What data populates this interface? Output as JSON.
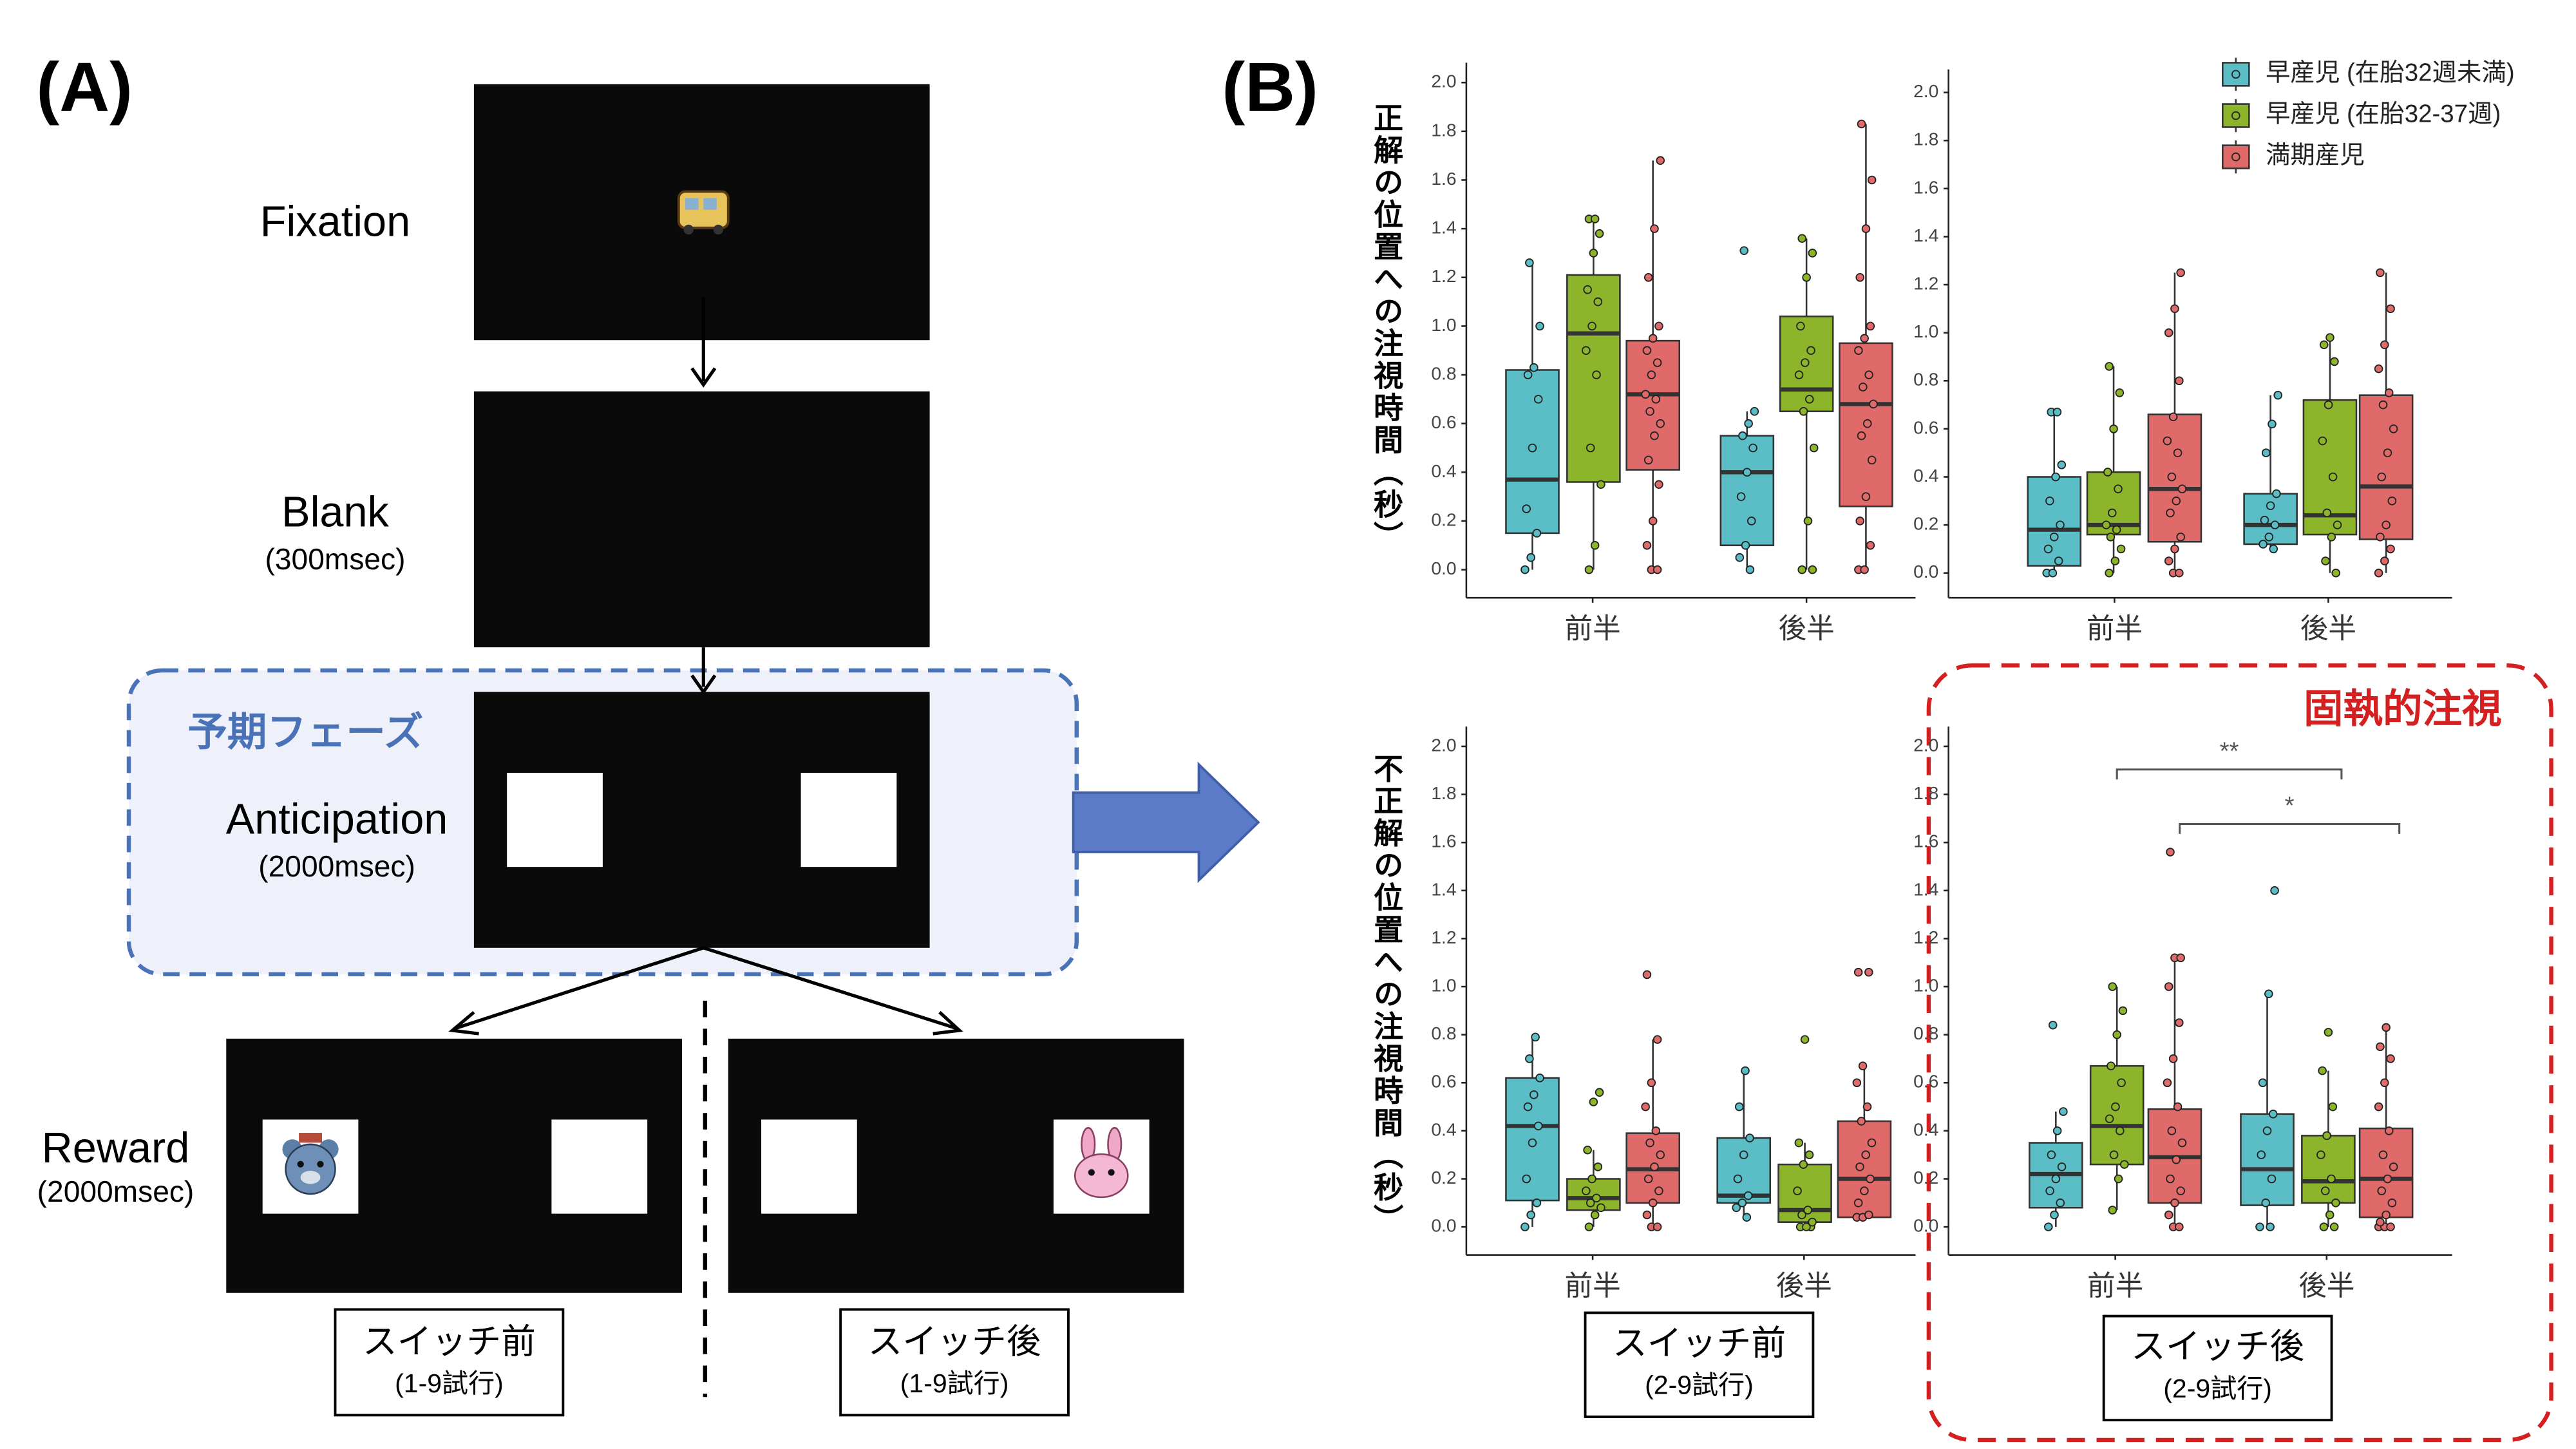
{
  "diagram": {
    "label": "(A)",
    "phase": "予期フェーズ",
    "stages": [
      {
        "label": "Fixation"
      },
      {
        "label": "Blank",
        "duration": "(300msec)"
      },
      {
        "label": "Anticipation",
        "duration": "(2000msec)"
      },
      {
        "label": "Reward",
        "duration": "(2000msec)"
      }
    ],
    "conditions": [
      {
        "label": "スイッチ前",
        "trials": "(1-9試行)"
      },
      {
        "label": "スイッチ後",
        "trials": "(1-9試行)"
      }
    ]
  },
  "panel_b": {
    "label": "(B)",
    "highlight": "固執的注視",
    "conditions": [
      {
        "label": "スイッチ前",
        "trials": "(2-9試行)"
      },
      {
        "label": "スイッチ後",
        "trials": "(2-9試行)"
      }
    ]
  },
  "chart_data": [
    {
      "type": "box",
      "ylabel": "正解の位置への注視時間（秒）",
      "categories": [
        "前半",
        "後半"
      ],
      "ylim": [
        0,
        2
      ],
      "yticks": [
        {
          "value": 0,
          "label": "0.0"
        },
        0.2,
        0.4,
        0.6,
        0.8,
        {
          "value": 1,
          "label": "1.0"
        },
        1.2,
        1.4,
        1.6,
        1.8,
        {
          "value": 2,
          "label": "2.0"
        }
      ],
      "series": [
        {
          "color": "#5bbdc6",
          "whisker_low": [
            0,
            0
          ],
          "q1": [
            0.15,
            0.1
          ],
          "median": [
            0.37,
            0.4
          ],
          "q3": [
            0.82,
            0.55
          ],
          "whisker_high": [
            1.26,
            0.65
          ],
          "points": [
            [
              0,
              0.05,
              0.15,
              0.25,
              0.5,
              0.7,
              0.8,
              0.83,
              1.0,
              1.26
            ],
            [
              0,
              0.05,
              0.1,
              0.2,
              0.3,
              0.4,
              0.5,
              0.55,
              0.6,
              0.65,
              1.31
            ]
          ]
        },
        {
          "color": "#8db52b",
          "whisker_low": [
            0,
            0
          ],
          "q1": [
            0.36,
            0.65
          ],
          "median": [
            0.97,
            0.74
          ],
          "q3": [
            1.21,
            1.04
          ],
          "whisker_high": [
            1.44,
            1.36
          ],
          "points": [
            [
              0,
              0.1,
              0.35,
              0.5,
              0.8,
              0.9,
              1.0,
              1.1,
              1.15,
              1.3,
              1.38,
              1.44,
              1.44
            ],
            [
              0,
              0,
              0.2,
              0.5,
              0.65,
              0.7,
              0.8,
              0.85,
              0.9,
              1.0,
              1.2,
              1.3,
              1.36
            ]
          ]
        },
        {
          "color": "#e06a6a",
          "whisker_low": [
            0,
            0
          ],
          "q1": [
            0.41,
            0.26
          ],
          "median": [
            0.72,
            0.68
          ],
          "q3": [
            0.94,
            0.93
          ],
          "whisker_high": [
            1.68,
            1.83
          ],
          "points": [
            [
              0,
              0,
              0.1,
              0.2,
              0.35,
              0.45,
              0.55,
              0.6,
              0.65,
              0.7,
              0.72,
              0.8,
              0.85,
              0.9,
              0.95,
              1.0,
              1.2,
              1.4,
              1.68
            ],
            [
              0,
              0,
              0.1,
              0.2,
              0.3,
              0.45,
              0.55,
              0.6,
              0.68,
              0.75,
              0.8,
              0.9,
              0.95,
              1.0,
              1.2,
              1.4,
              1.6,
              1.83
            ]
          ]
        }
      ]
    },
    {
      "type": "box",
      "categories": [
        "前半",
        "後半"
      ],
      "ylim": [
        0,
        2
      ],
      "yticks": [
        {
          "value": 0,
          "label": "0.0"
        },
        0.2,
        0.4,
        0.6,
        0.8,
        {
          "value": 1,
          "label": "1.0"
        },
        1.2,
        1.4,
        1.6,
        1.8,
        {
          "value": 2,
          "label": "2.0"
        }
      ],
      "legend": "top-right",
      "series": [
        {
          "name": "早産児 (在胎32週未満)",
          "color": "#5bbdc6",
          "whisker_low": [
            0,
            0.1
          ],
          "q1": [
            0.03,
            0.12
          ],
          "median": [
            0.18,
            0.2
          ],
          "q3": [
            0.4,
            0.33
          ],
          "whisker_high": [
            0.67,
            0.74
          ],
          "points": [
            [
              0,
              0,
              0.05,
              0.1,
              0.15,
              0.2,
              0.3,
              0.4,
              0.45,
              0.67,
              0.67
            ],
            [
              0.1,
              0.12,
              0.15,
              0.2,
              0.22,
              0.28,
              0.33,
              0.5,
              0.62,
              0.74
            ]
          ]
        },
        {
          "name": "早産児 (在胎32-37週)",
          "color": "#8db52b",
          "whisker_low": [
            0,
            0
          ],
          "q1": [
            0.16,
            0.16
          ],
          "median": [
            0.2,
            0.24
          ],
          "q3": [
            0.42,
            0.72
          ],
          "whisker_high": [
            0.86,
            0.98
          ],
          "points": [
            [
              0,
              0.05,
              0.1,
              0.15,
              0.18,
              0.2,
              0.25,
              0.35,
              0.42,
              0.6,
              0.75,
              0.86
            ],
            [
              0,
              0.05,
              0.15,
              0.2,
              0.25,
              0.4,
              0.55,
              0.7,
              0.88,
              0.95,
              0.98
            ]
          ]
        },
        {
          "name": "満期産児",
          "color": "#e06a6a",
          "whisker_low": [
            0,
            0
          ],
          "q1": [
            0.13,
            0.14
          ],
          "median": [
            0.35,
            0.36
          ],
          "q3": [
            0.66,
            0.74
          ],
          "whisker_high": [
            1.25,
            1.25
          ],
          "points": [
            [
              0,
              0,
              0.05,
              0.1,
              0.15,
              0.25,
              0.3,
              0.35,
              0.4,
              0.5,
              0.55,
              0.65,
              0.8,
              1.0,
              1.1,
              1.25
            ],
            [
              0,
              0.05,
              0.1,
              0.15,
              0.2,
              0.3,
              0.4,
              0.5,
              0.6,
              0.7,
              0.75,
              0.85,
              0.95,
              1.1,
              1.25
            ]
          ]
        }
      ]
    },
    {
      "type": "box",
      "ylabel": "不正解の位置への注視時間（秒）",
      "categories": [
        "前半",
        "後半"
      ],
      "ylim": [
        0,
        2
      ],
      "yticks": [
        {
          "value": 0,
          "label": "0.0"
        },
        0.2,
        0.4,
        0.6,
        0.8,
        {
          "value": 1,
          "label": "1.0"
        },
        1.2,
        1.4,
        1.6,
        1.8,
        {
          "value": 2,
          "label": "2.0"
        }
      ],
      "series": [
        {
          "color": "#5bbdc6",
          "whisker_low": [
            0,
            0.04
          ],
          "q1": [
            0.11,
            0.1
          ],
          "median": [
            0.42,
            0.13
          ],
          "q3": [
            0.62,
            0.37
          ],
          "whisker_high": [
            0.79,
            0.65
          ],
          "points": [
            [
              0,
              0.05,
              0.1,
              0.2,
              0.35,
              0.42,
              0.5,
              0.55,
              0.62,
              0.7,
              0.79
            ],
            [
              0.04,
              0.08,
              0.1,
              0.13,
              0.2,
              0.3,
              0.37,
              0.5,
              0.65
            ]
          ]
        },
        {
          "color": "#8db52b",
          "whisker_low": [
            0,
            0
          ],
          "q1": [
            0.07,
            0.02
          ],
          "median": [
            0.12,
            0.07
          ],
          "q3": [
            0.2,
            0.26
          ],
          "whisker_high": [
            0.32,
            0.35
          ],
          "points": [
            [
              0,
              0.05,
              0.08,
              0.1,
              0.12,
              0.15,
              0.2,
              0.25,
              0.32,
              0.52,
              0.56
            ],
            [
              0,
              0,
              0,
              0.02,
              0.05,
              0.07,
              0.15,
              0.26,
              0.3,
              0.35,
              0.78
            ]
          ]
        },
        {
          "color": "#e06a6a",
          "whisker_low": [
            0,
            0.04
          ],
          "q1": [
            0.1,
            0.04
          ],
          "median": [
            0.24,
            0.2
          ],
          "q3": [
            0.39,
            0.44
          ],
          "whisker_high": [
            0.78,
            0.67
          ],
          "points": [
            [
              0,
              0,
              0.05,
              0.1,
              0.15,
              0.2,
              0.25,
              0.3,
              0.35,
              0.4,
              0.5,
              0.6,
              0.78,
              1.05
            ],
            [
              0.04,
              0.04,
              0.05,
              0.1,
              0.15,
              0.2,
              0.25,
              0.3,
              0.35,
              0.44,
              0.5,
              0.6,
              0.67,
              1.06,
              1.06
            ]
          ]
        }
      ]
    },
    {
      "type": "box",
      "categories": [
        "前半",
        "後半"
      ],
      "ylim": [
        0,
        2
      ],
      "yticks": [
        {
          "value": 0,
          "label": "0.0"
        },
        0.2,
        0.4,
        0.6,
        0.8,
        {
          "value": 1,
          "label": "1.0"
        },
        1.2,
        1.4,
        1.6,
        1.8,
        {
          "value": 2,
          "label": "2.0"
        }
      ],
      "annotations": [
        {
          "label": "**"
        },
        {
          "label": "*"
        }
      ],
      "series": [
        {
          "color": "#5bbdc6",
          "whisker_low": [
            0,
            0
          ],
          "q1": [
            0.08,
            0.09
          ],
          "median": [
            0.22,
            0.24
          ],
          "q3": [
            0.35,
            0.47
          ],
          "whisker_high": [
            0.48,
            0.97
          ],
          "points": [
            [
              0,
              0.05,
              0.1,
              0.15,
              0.2,
              0.25,
              0.3,
              0.4,
              0.48,
              0.84
            ],
            [
              0,
              0,
              0.1,
              0.2,
              0.3,
              0.4,
              0.47,
              0.6,
              0.97,
              1.4
            ]
          ]
        },
        {
          "color": "#8db52b",
          "whisker_low": [
            0.07,
            0
          ],
          "q1": [
            0.26,
            0.1
          ],
          "median": [
            0.42,
            0.19
          ],
          "q3": [
            0.67,
            0.38
          ],
          "whisker_high": [
            1.0,
            0.65
          ],
          "points": [
            [
              0.07,
              0.2,
              0.26,
              0.3,
              0.4,
              0.45,
              0.5,
              0.6,
              0.67,
              0.8,
              0.9,
              1.0
            ],
            [
              0,
              0,
              0.05,
              0.1,
              0.15,
              0.2,
              0.3,
              0.38,
              0.5,
              0.65,
              0.81
            ]
          ]
        },
        {
          "color": "#e06a6a",
          "whisker_low": [
            0,
            0
          ],
          "q1": [
            0.1,
            0.04
          ],
          "median": [
            0.29,
            0.2
          ],
          "q3": [
            0.49,
            0.41
          ],
          "whisker_high": [
            1.12,
            0.83
          ],
          "points": [
            [
              0,
              0,
              0.05,
              0.1,
              0.15,
              0.2,
              0.28,
              0.35,
              0.4,
              0.5,
              0.6,
              0.7,
              0.85,
              1.0,
              1.12,
              1.12,
              1.56
            ],
            [
              0,
              0,
              0,
              0.02,
              0.05,
              0.1,
              0.15,
              0.2,
              0.25,
              0.3,
              0.4,
              0.5,
              0.6,
              0.7,
              0.75,
              0.83
            ]
          ]
        }
      ]
    }
  ]
}
